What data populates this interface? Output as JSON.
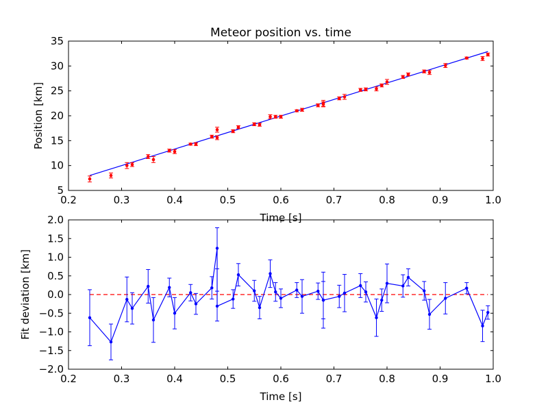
{
  "chart_data": [
    {
      "type": "scatter",
      "title": "Meteor position vs. time",
      "xlabel": "Time [s]",
      "ylabel": "Position [km]",
      "xlim": [
        0.2,
        1.0
      ],
      "ylim": [
        5,
        35
      ],
      "xticks": [
        0.2,
        0.3,
        0.4,
        0.5,
        0.6,
        0.7,
        0.8,
        0.9,
        1.0
      ],
      "yticks": [
        5,
        10,
        15,
        20,
        25,
        30,
        35
      ],
      "xtick_labels": [
        "0.2",
        "0.3",
        "0.4",
        "0.5",
        "0.6",
        "0.7",
        "0.8",
        "0.9",
        "1.0"
      ],
      "ytick_labels": [
        "5",
        "10",
        "15",
        "20",
        "25",
        "30",
        "35"
      ],
      "grid": false,
      "colors": {
        "points": "#ff0000",
        "errorbars": "#ff0000",
        "fit_line": "#0000ff"
      },
      "points": {
        "x": [
          0.24,
          0.28,
          0.31,
          0.32,
          0.35,
          0.36,
          0.39,
          0.4,
          0.43,
          0.44,
          0.47,
          0.48,
          0.48,
          0.51,
          0.52,
          0.55,
          0.56,
          0.58,
          0.59,
          0.6,
          0.63,
          0.64,
          0.67,
          0.68,
          0.68,
          0.71,
          0.72,
          0.75,
          0.76,
          0.78,
          0.79,
          0.8,
          0.83,
          0.84,
          0.87,
          0.88,
          0.91,
          0.95,
          0.98,
          0.99
        ],
        "y": [
          7.3,
          8.0,
          10.0,
          10.2,
          11.8,
          11.2,
          13.0,
          12.8,
          14.3,
          14.3,
          15.8,
          15.6,
          17.2,
          16.9,
          17.7,
          18.3,
          18.2,
          19.8,
          19.8,
          19.8,
          21.0,
          21.2,
          22.1,
          22.5,
          22.3,
          23.5,
          23.8,
          25.2,
          25.3,
          25.4,
          26.1,
          26.8,
          27.8,
          28.3,
          28.9,
          28.7,
          30.1,
          31.6,
          31.5,
          32.3
        ],
        "err": [
          0.6,
          0.5,
          0.6,
          0.4,
          0.4,
          0.6,
          0.3,
          0.4,
          0.2,
          0.3,
          0.3,
          0.4,
          0.5,
          0.3,
          0.3,
          0.3,
          0.3,
          0.4,
          0.3,
          0.3,
          0.2,
          0.3,
          0.3,
          0.6,
          0.5,
          0.3,
          0.5,
          0.3,
          0.3,
          0.4,
          0.3,
          0.5,
          0.3,
          0.3,
          0.3,
          0.4,
          0.4,
          0.2,
          0.4,
          0.3
        ]
      },
      "fit_line": {
        "x": [
          0.24,
          0.99
        ],
        "y": [
          8.0,
          32.9
        ]
      }
    },
    {
      "type": "line",
      "xlabel": "Time [s]",
      "ylabel": "Fit deviation [km]",
      "xlim": [
        0.2,
        1.0
      ],
      "ylim": [
        -2.0,
        2.0
      ],
      "xticks": [
        0.2,
        0.3,
        0.4,
        0.5,
        0.6,
        0.7,
        0.8,
        0.9,
        1.0
      ],
      "yticks": [
        -2.0,
        -1.5,
        -1.0,
        -0.5,
        0.0,
        0.5,
        1.0,
        1.5,
        2.0
      ],
      "xtick_labels": [
        "0.2",
        "0.3",
        "0.4",
        "0.5",
        "0.6",
        "0.7",
        "0.8",
        "0.9",
        "1.0"
      ],
      "ytick_labels": [
        "−2.0",
        "−1.5",
        "−1.0",
        "−0.5",
        "0.0",
        "0.5",
        "1.0",
        "1.5",
        "2.0"
      ],
      "grid": false,
      "colors": {
        "series": "#0000ff",
        "zero_line": "#ff0000"
      },
      "series": {
        "x": [
          0.24,
          0.28,
          0.31,
          0.32,
          0.35,
          0.36,
          0.39,
          0.4,
          0.43,
          0.44,
          0.47,
          0.48,
          0.48,
          0.51,
          0.52,
          0.55,
          0.56,
          0.58,
          0.59,
          0.6,
          0.63,
          0.64,
          0.67,
          0.68,
          0.68,
          0.71,
          0.72,
          0.75,
          0.76,
          0.78,
          0.79,
          0.8,
          0.83,
          0.84,
          0.87,
          0.88,
          0.91,
          0.95,
          0.98,
          0.99
        ],
        "y": [
          -0.62,
          -1.27,
          -0.13,
          -0.37,
          0.22,
          -0.68,
          0.19,
          -0.5,
          0.05,
          -0.25,
          0.18,
          1.24,
          -0.31,
          -0.12,
          0.53,
          0.1,
          -0.35,
          0.56,
          0.07,
          -0.1,
          0.12,
          -0.05,
          0.09,
          -0.15,
          -0.15,
          -0.05,
          0.04,
          0.24,
          0.07,
          -0.62,
          -0.15,
          0.3,
          0.23,
          0.46,
          0.1,
          -0.53,
          -0.1,
          0.17,
          -0.84,
          -0.48
        ],
        "err": [
          0.75,
          0.48,
          0.6,
          0.42,
          0.45,
          0.6,
          0.25,
          0.42,
          0.22,
          0.28,
          0.3,
          0.55,
          0.4,
          0.25,
          0.3,
          0.28,
          0.3,
          0.37,
          0.25,
          0.25,
          0.2,
          0.45,
          0.22,
          0.75,
          0.5,
          0.3,
          0.5,
          0.32,
          0.27,
          0.5,
          0.3,
          0.52,
          0.3,
          0.23,
          0.25,
          0.4,
          0.42,
          0.15,
          0.42,
          0.18
        ]
      },
      "zero_line": {
        "y": 0.0,
        "style": "dashed"
      }
    }
  ]
}
